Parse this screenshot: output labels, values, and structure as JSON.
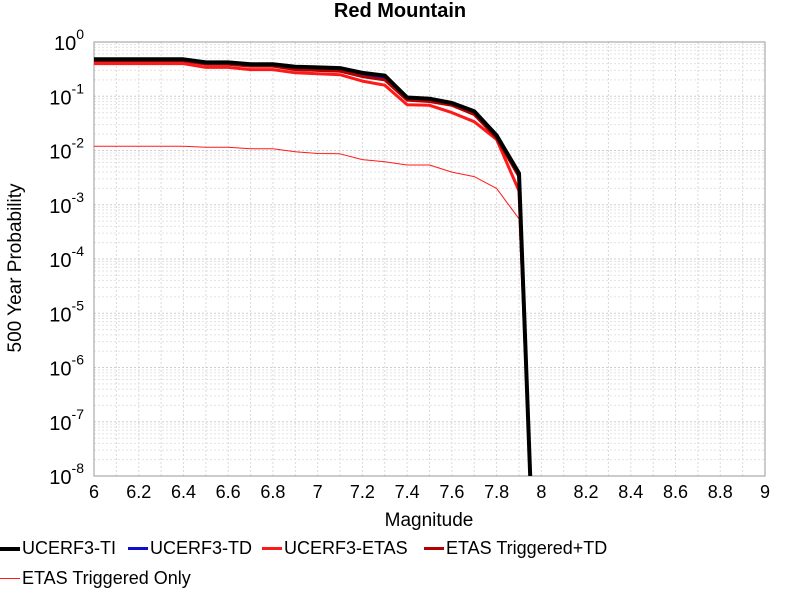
{
  "chart_data": {
    "type": "line",
    "title": "Red Mountain",
    "xlabel": "Magnitude",
    "ylabel": "500 Year Probability",
    "xlim": [
      6,
      9
    ],
    "ylim": [
      1e-08,
      1
    ],
    "yscale": "log",
    "grid": true,
    "legend_position": "bottom",
    "x_ticks": [
      "6",
      "6.2",
      "6.4",
      "6.6",
      "6.8",
      "7",
      "7.2",
      "7.4",
      "7.6",
      "7.8",
      "8",
      "8.2",
      "8.4",
      "8.6",
      "8.8",
      "9"
    ],
    "y_ticks": [
      {
        "base": "10",
        "exp": "0"
      },
      {
        "base": "10",
        "exp": "-1"
      },
      {
        "base": "10",
        "exp": "-2"
      },
      {
        "base": "10",
        "exp": "-3"
      },
      {
        "base": "10",
        "exp": "-4"
      },
      {
        "base": "10",
        "exp": "-5"
      },
      {
        "base": "10",
        "exp": "-6"
      },
      {
        "base": "10",
        "exp": "-7"
      },
      {
        "base": "10",
        "exp": "-8"
      }
    ],
    "series": [
      {
        "name": "UCERF3-TI",
        "color": "#000000",
        "width": 4,
        "x": [
          6.0,
          6.1,
          6.2,
          6.3,
          6.4,
          6.5,
          6.6,
          6.7,
          6.8,
          6.9,
          7.0,
          7.1,
          7.2,
          7.3,
          7.4,
          7.5,
          7.6,
          7.7,
          7.8,
          7.9,
          7.95
        ],
        "y": [
          0.48,
          0.48,
          0.48,
          0.48,
          0.48,
          0.42,
          0.42,
          0.39,
          0.39,
          0.35,
          0.34,
          0.33,
          0.27,
          0.24,
          0.095,
          0.09,
          0.075,
          0.053,
          0.019,
          0.0038,
          1e-08
        ]
      },
      {
        "name": "UCERF3-TD",
        "color": "#1010cc",
        "width": 3,
        "x": [
          6.0,
          6.1,
          6.2,
          6.3,
          6.4,
          6.5,
          6.6,
          6.7,
          6.8,
          6.9,
          7.0,
          7.1,
          7.2,
          7.3,
          7.4,
          7.5,
          7.6,
          7.7,
          7.8,
          7.9,
          7.95
        ],
        "y": [
          0.46,
          0.46,
          0.46,
          0.46,
          0.46,
          0.4,
          0.4,
          0.37,
          0.37,
          0.33,
          0.32,
          0.31,
          0.25,
          0.22,
          0.09,
          0.085,
          0.072,
          0.048,
          0.017,
          0.0035,
          1e-08
        ]
      },
      {
        "name": "UCERF3-ETAS",
        "color": "#ff1a1a",
        "width": 3,
        "x": [
          6.0,
          6.1,
          6.2,
          6.3,
          6.4,
          6.5,
          6.6,
          6.7,
          6.8,
          6.9,
          7.0,
          7.1,
          7.2,
          7.3,
          7.4,
          7.5,
          7.6,
          7.7,
          7.8,
          7.9,
          7.95
        ],
        "y": [
          0.4,
          0.4,
          0.4,
          0.4,
          0.4,
          0.34,
          0.34,
          0.31,
          0.31,
          0.27,
          0.26,
          0.25,
          0.19,
          0.16,
          0.07,
          0.068,
          0.05,
          0.034,
          0.016,
          0.0018,
          1e-08
        ]
      },
      {
        "name": "ETAS Triggered+TD",
        "color": "#b30000",
        "width": 3,
        "x": [
          6.0,
          6.1,
          6.2,
          6.3,
          6.4,
          6.5,
          6.6,
          6.7,
          6.8,
          6.9,
          7.0,
          7.1,
          7.2,
          7.3,
          7.4,
          7.5,
          7.6,
          7.7,
          7.8,
          7.9,
          7.95
        ],
        "y": [
          0.45,
          0.45,
          0.45,
          0.45,
          0.45,
          0.39,
          0.39,
          0.36,
          0.36,
          0.31,
          0.3,
          0.29,
          0.23,
          0.2,
          0.085,
          0.08,
          0.068,
          0.046,
          0.017,
          0.0033,
          1e-08
        ]
      },
      {
        "name": "ETAS Triggered Only",
        "color": "#ff1a1a",
        "width": 1,
        "x": [
          6.0,
          6.1,
          6.2,
          6.3,
          6.4,
          6.5,
          6.6,
          6.7,
          6.8,
          6.9,
          7.0,
          7.1,
          7.2,
          7.3,
          7.4,
          7.5,
          7.6,
          7.7,
          7.8,
          7.9,
          7.95
        ],
        "y": [
          0.012,
          0.012,
          0.012,
          0.012,
          0.012,
          0.0115,
          0.0115,
          0.0108,
          0.0108,
          0.0095,
          0.0088,
          0.0087,
          0.0068,
          0.0062,
          0.0054,
          0.0054,
          0.004,
          0.0033,
          0.002,
          0.00055,
          1e-08
        ]
      }
    ]
  }
}
